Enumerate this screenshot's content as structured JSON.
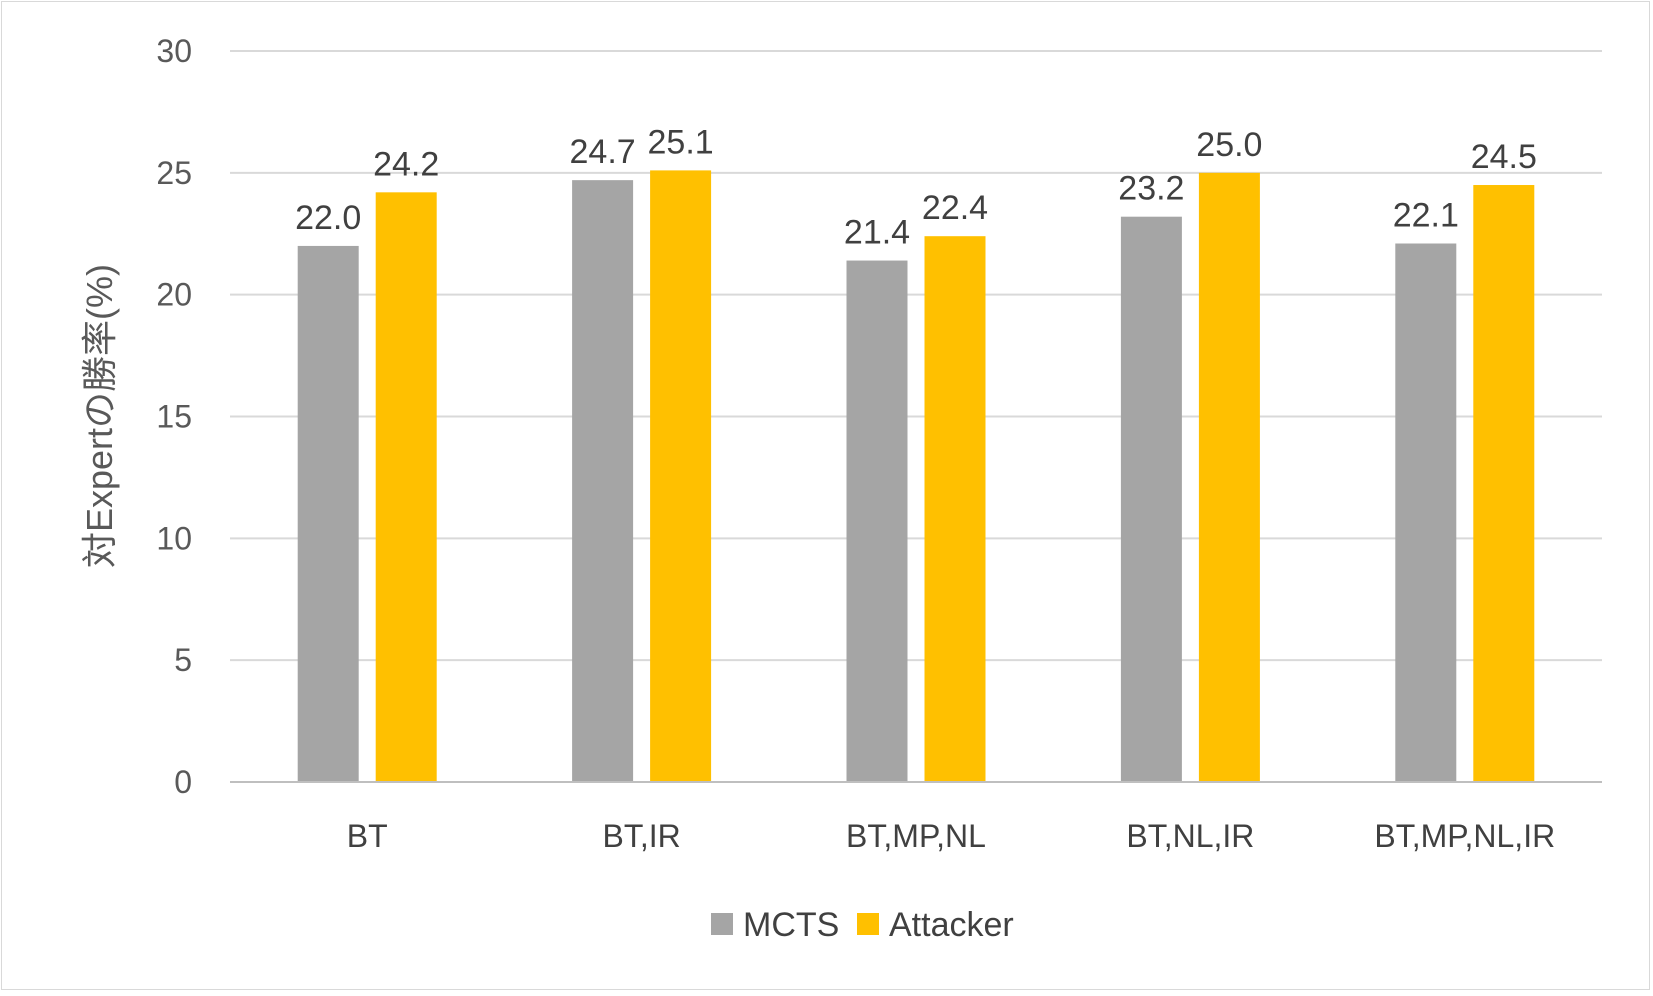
{
  "chart_data": {
    "type": "bar",
    "ylabel": "対Expertの勝率(%)",
    "xlabel": "",
    "categories": [
      "BT",
      "BT,IR",
      "BT,MP,NL",
      "BT,NL,IR",
      "BT,MP,NL,IR"
    ],
    "series": [
      {
        "name": "MCTS",
        "color": "#a5a5a5",
        "values": [
          22.0,
          24.7,
          21.4,
          23.2,
          22.1
        ]
      },
      {
        "name": "Attacker",
        "color": "#ffc000",
        "values": [
          24.2,
          25.1,
          22.4,
          25.0,
          24.5
        ]
      }
    ],
    "ylim": [
      0,
      30
    ],
    "yticks": [
      0,
      5,
      10,
      15,
      20,
      25,
      30
    ],
    "grid": true,
    "legend": "bottom",
    "data_labels": true,
    "label_decimals": 1
  }
}
